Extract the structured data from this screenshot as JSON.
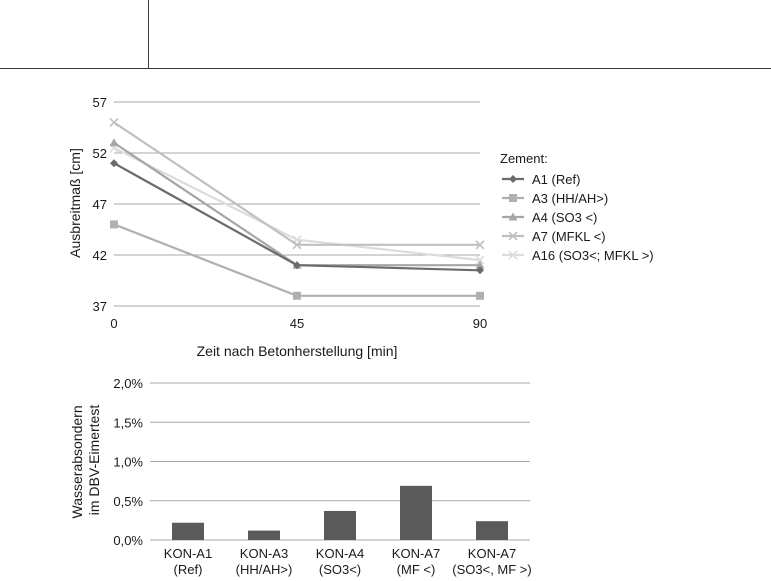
{
  "chart_data": [
    {
      "type": "line",
      "title": "",
      "xlabel": "Zeit nach Betonherstellung [min]",
      "ylabel": "Ausbreitmaß [cm]",
      "x": [
        0,
        45,
        90
      ],
      "x_ticks": [
        "0",
        "45",
        "90"
      ],
      "ylim": [
        37,
        57
      ],
      "y_ticks": [
        37,
        42,
        47,
        52,
        57
      ],
      "grid": true,
      "legend_title": "Zement:",
      "legend_position": "right",
      "series": [
        {
          "name": "A1 (Ref)",
          "values": [
            51,
            41,
            40.5
          ],
          "color": "#6b6b6b",
          "marker": "diamond"
        },
        {
          "name": "A3 (HH/AH>)",
          "values": [
            45,
            38,
            38
          ],
          "color": "#b0b0b0",
          "marker": "square"
        },
        {
          "name": "A4 (SO3 <)",
          "values": [
            53,
            41,
            41
          ],
          "color": "#a6a6a6",
          "marker": "triangle"
        },
        {
          "name": "A7 (MFKL <)",
          "values": [
            55,
            43,
            43
          ],
          "color": "#c0c0c0",
          "marker": "x"
        },
        {
          "name": "A16 (SO3<; MFKL >)",
          "values": [
            52.5,
            43.5,
            41.5
          ],
          "color": "#dcdcdc",
          "marker": "x"
        }
      ]
    },
    {
      "type": "bar",
      "title": "",
      "xlabel": "",
      "ylabel": [
        "Wasserabsondern",
        "im DBV-Eimertest"
      ],
      "categories": [
        [
          "KON-A1",
          "(Ref)"
        ],
        [
          "KON-A3",
          "(HH/AH>)"
        ],
        [
          "KON-A4",
          "(SO3<)"
        ],
        [
          "KON-A7",
          "(MF <)"
        ],
        [
          "KON-A7",
          "(SO3<, MF >)"
        ]
      ],
      "values": [
        0.22,
        0.12,
        0.37,
        0.69,
        0.24
      ],
      "ylim": [
        0,
        2.0
      ],
      "y_ticks": [
        "0,0%",
        "0,5%",
        "1,0%",
        "1,5%",
        "2,0%"
      ],
      "y_tick_values": [
        0,
        0.5,
        1.0,
        1.5,
        2.0
      ],
      "grid": true,
      "bar_color": "#5a5a5a"
    }
  ]
}
